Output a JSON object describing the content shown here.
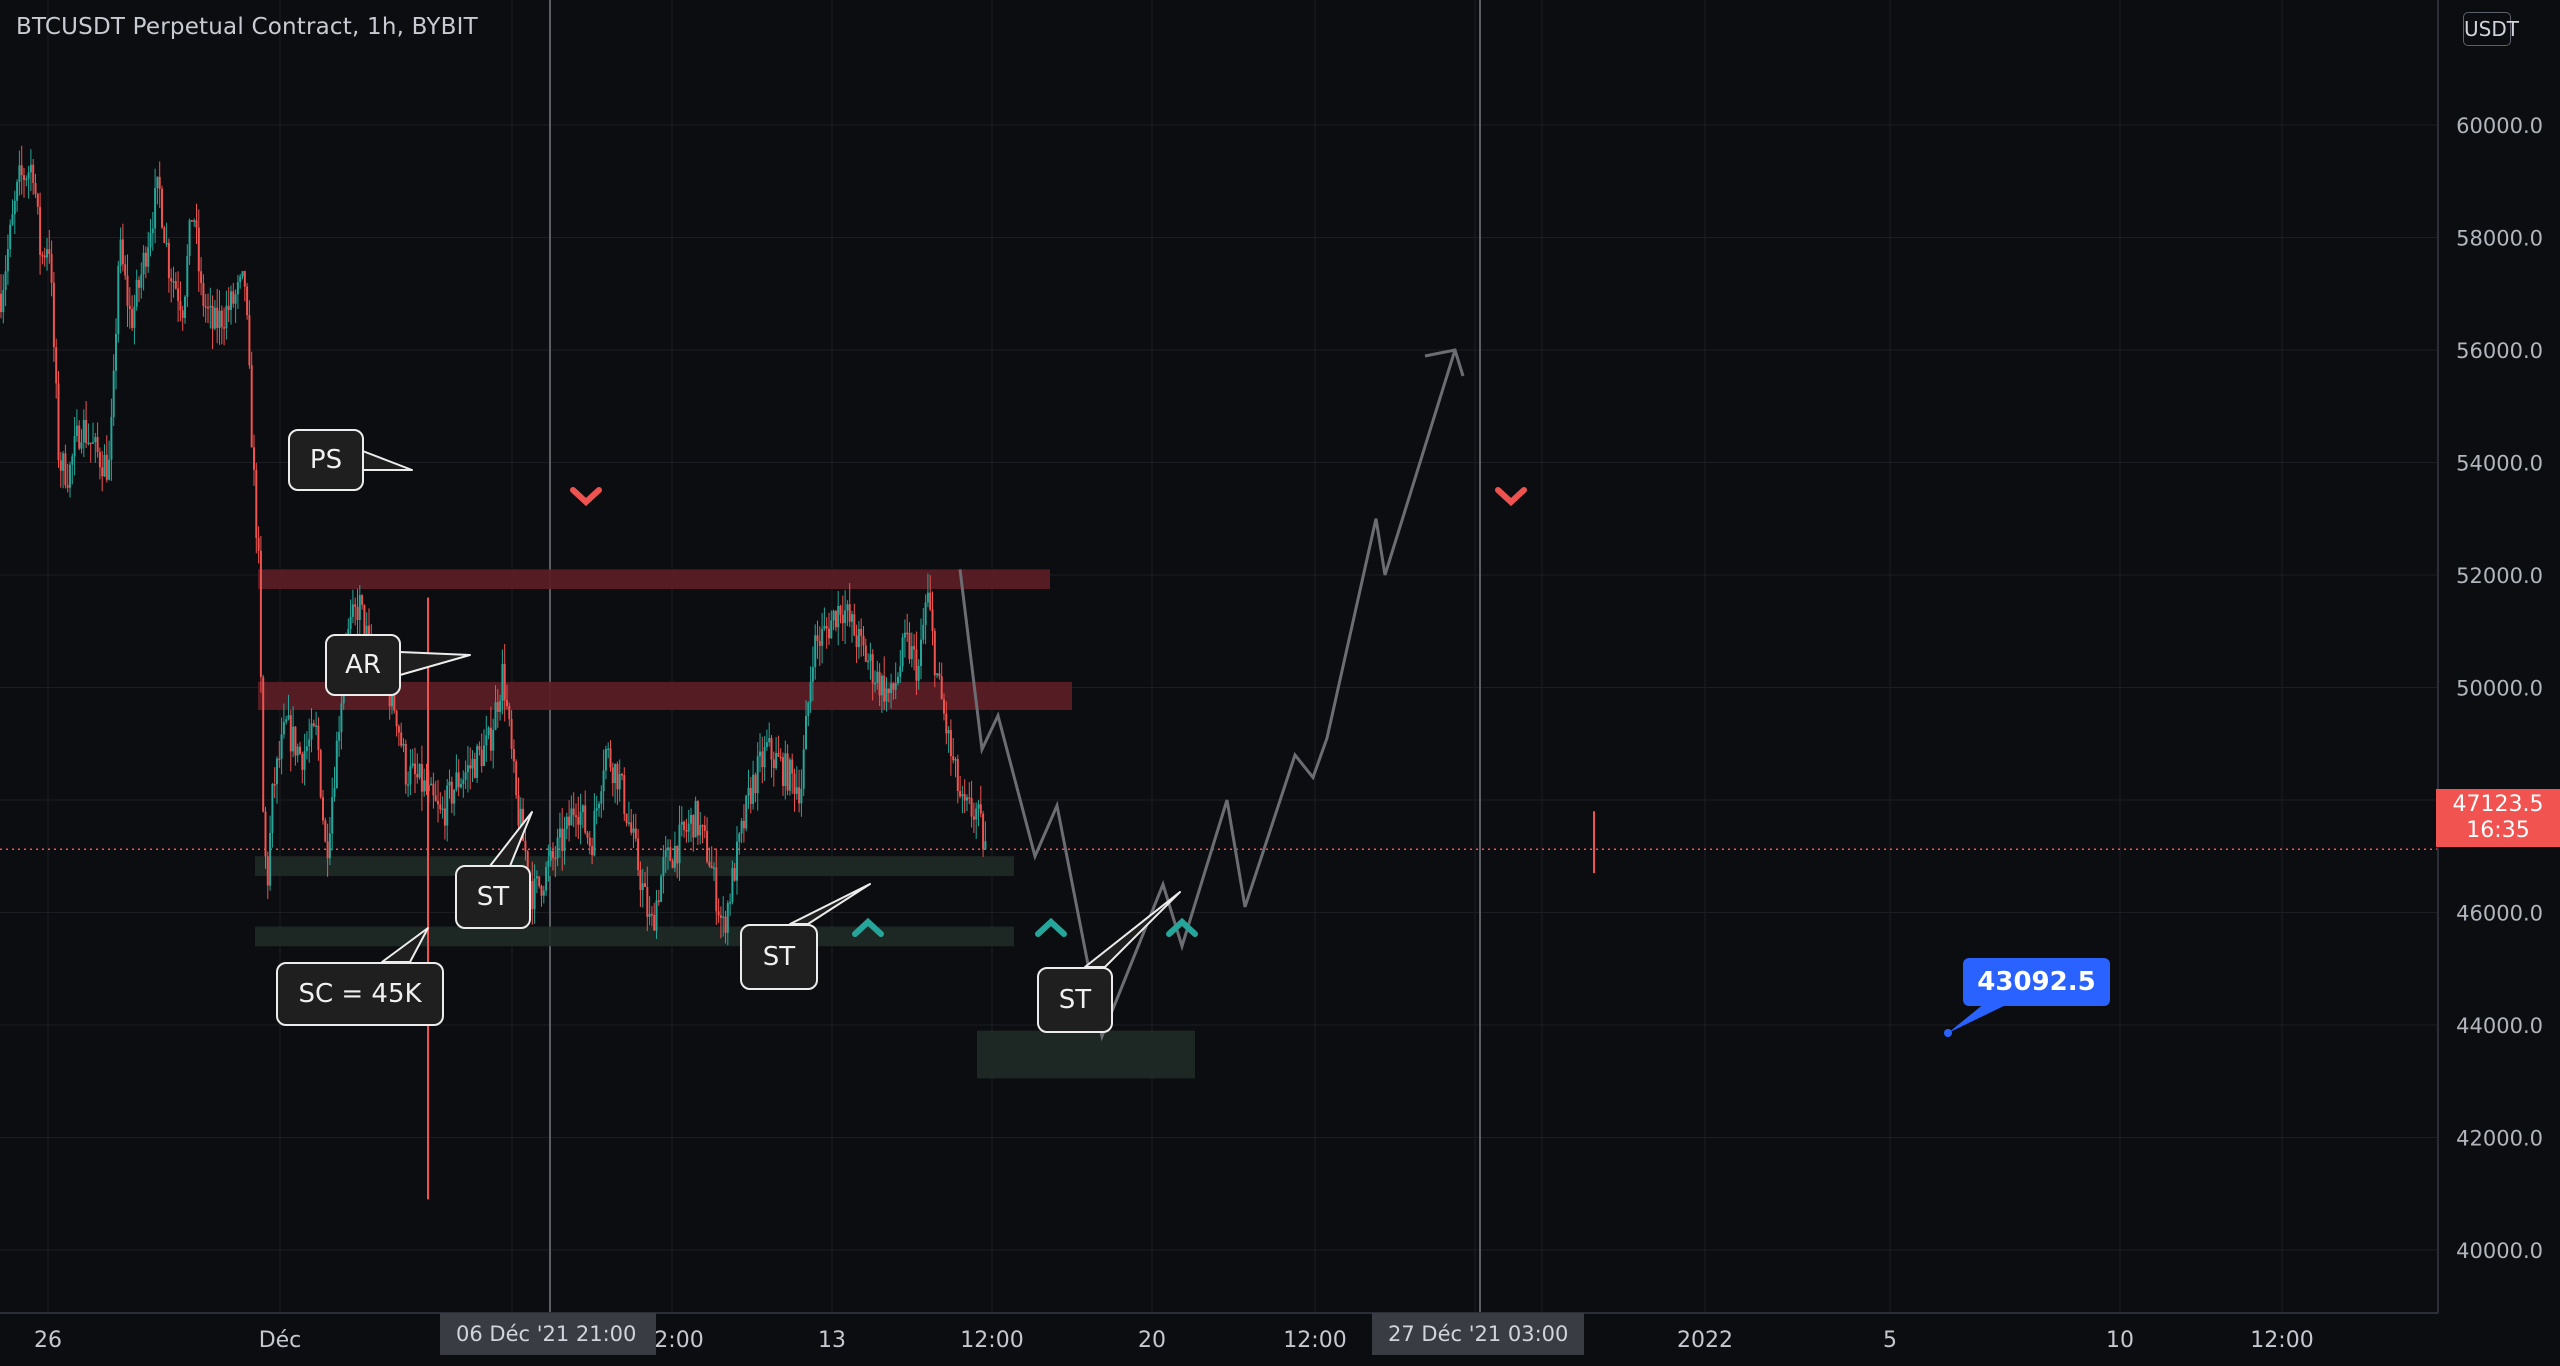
{
  "header": {
    "title": "BTCUSDT Perpetual Contract, 1h, BYBIT",
    "currency": "USDT"
  },
  "current_price": {
    "value": "47123.5",
    "countdown": "16:35"
  },
  "x_highlights": {
    "left": "06 Déc '21   21:00",
    "right": "27 Déc '21   03:00"
  },
  "colors": {
    "background": "#0c0d10",
    "grid": "#1b1d22",
    "up": "#26a69a",
    "down": "#ef5350",
    "resistance_zone": "#5a1e25",
    "support_zone": "#1f2b27",
    "projection": "#6b6d73",
    "target_label": "#2962ff",
    "price_line": "#f05350"
  },
  "chart_data": {
    "type": "candlestick",
    "title": "BTCUSDT Perpetual Contract, 1h, BYBIT",
    "ylabel": "USDT",
    "ylim": [
      38000,
      61000
    ],
    "y_scale": "linear",
    "grid": true,
    "y_ticks": [
      "60000.0",
      "58000.0",
      "56000.0",
      "54000.0",
      "52000.0",
      "50000.0",
      "48000.0",
      "46000.0",
      "44000.0",
      "42000.0",
      "40000.0"
    ],
    "x_tick_labels": [
      "26",
      "Déc",
      "6 Déc '21",
      "12:00",
      "13",
      "12:00",
      "20",
      "12:00",
      "27",
      "03:00",
      "2022",
      "5",
      "10",
      "12:00"
    ],
    "price_path": [
      [
        0,
        57000
      ],
      [
        18,
        59000
      ],
      [
        32,
        59300
      ],
      [
        40,
        57600
      ],
      [
        48,
        58000
      ],
      [
        58,
        54000
      ],
      [
        68,
        53800
      ],
      [
        80,
        54700
      ],
      [
        94,
        54200
      ],
      [
        108,
        53900
      ],
      [
        112,
        55000
      ],
      [
        118,
        57900
      ],
      [
        130,
        56500
      ],
      [
        140,
        57300
      ],
      [
        150,
        58300
      ],
      [
        158,
        58900
      ],
      [
        168,
        57500
      ],
      [
        182,
        56800
      ],
      [
        192,
        58600
      ],
      [
        200,
        57000
      ],
      [
        212,
        56400
      ],
      [
        230,
        56800
      ],
      [
        244,
        57200
      ],
      [
        252,
        54000
      ],
      [
        258,
        52000
      ],
      [
        262,
        47800
      ],
      [
        266,
        46400
      ],
      [
        272,
        48200
      ],
      [
        285,
        49300
      ],
      [
        300,
        48800
      ],
      [
        316,
        49200
      ],
      [
        325,
        47000
      ],
      [
        335,
        48800
      ],
      [
        345,
        50800
      ],
      [
        358,
        51500
      ],
      [
        372,
        50400
      ],
      [
        385,
        50100
      ],
      [
        395,
        49600
      ],
      [
        405,
        48500
      ],
      [
        420,
        48300
      ],
      [
        440,
        47700
      ],
      [
        455,
        48300
      ],
      [
        470,
        48600
      ],
      [
        488,
        49000
      ],
      [
        502,
        50300
      ],
      [
        515,
        48000
      ],
      [
        532,
        46300
      ],
      [
        548,
        46800
      ],
      [
        565,
        47400
      ],
      [
        575,
        48000
      ],
      [
        590,
        47200
      ],
      [
        604,
        48900
      ],
      [
        618,
        48400
      ],
      [
        634,
        47100
      ],
      [
        650,
        45700
      ],
      [
        662,
        46800
      ],
      [
        680,
        47300
      ],
      [
        694,
        47700
      ],
      [
        708,
        47000
      ],
      [
        722,
        45700
      ],
      [
        735,
        46900
      ],
      [
        750,
        48200
      ],
      [
        766,
        48900
      ],
      [
        780,
        48600
      ],
      [
        800,
        48200
      ],
      [
        812,
        50700
      ],
      [
        825,
        51000
      ],
      [
        840,
        51500
      ],
      [
        858,
        50800
      ],
      [
        875,
        50200
      ],
      [
        890,
        49800
      ],
      [
        905,
        50800
      ],
      [
        918,
        50300
      ],
      [
        926,
        51700
      ],
      [
        936,
        50200
      ],
      [
        950,
        48800
      ],
      [
        962,
        47800
      ],
      [
        975,
        47800
      ],
      [
        985,
        47100
      ]
    ],
    "projection_path": [
      [
        960,
        52100
      ],
      [
        982,
        48900
      ],
      [
        998,
        49500
      ],
      [
        1035,
        47000
      ],
      [
        1057,
        47900
      ],
      [
        1102,
        43800
      ],
      [
        1163,
        46500
      ],
      [
        1182,
        45400
      ],
      [
        1227,
        48000
      ],
      [
        1245,
        46100
      ],
      [
        1295,
        48800
      ],
      [
        1313,
        48400
      ],
      [
        1327,
        49100
      ],
      [
        1376,
        53000
      ],
      [
        1385,
        52000
      ],
      [
        1455,
        56000
      ]
    ],
    "zones": [
      {
        "kind": "resistance",
        "y0": 51750,
        "y1": 52100,
        "x0": 258,
        "x1": 1050
      },
      {
        "kind": "resistance",
        "y0": 49600,
        "y1": 50100,
        "x0": 258,
        "x1": 1072
      },
      {
        "kind": "support",
        "y0": 46650,
        "y1": 47000,
        "x0": 255,
        "x1": 1014
      },
      {
        "kind": "support",
        "y0": 45400,
        "y1": 45750,
        "x0": 255,
        "x1": 1014
      },
      {
        "kind": "target",
        "y0": 43050,
        "y1": 43900,
        "x0": 977,
        "x1": 1195
      }
    ],
    "annotations": [
      {
        "text": "PS",
        "price": 53100
      },
      {
        "text": "AR",
        "price": 49800
      },
      {
        "text": "ST",
        "price": 47000
      },
      {
        "text": "SC = 45K",
        "price": 45000
      },
      {
        "text": "ST",
        "price": 45600
      },
      {
        "text": "ST",
        "price": 45600
      }
    ],
    "markers": [
      {
        "type": "sell",
        "price": 52300
      },
      {
        "type": "sell",
        "price": 52300
      },
      {
        "type": "buy",
        "price": 45100
      },
      {
        "type": "buy",
        "price": 45100
      },
      {
        "type": "buy",
        "price": 45100
      }
    ],
    "target_price": "43092.5",
    "last_price": 47123.5
  }
}
